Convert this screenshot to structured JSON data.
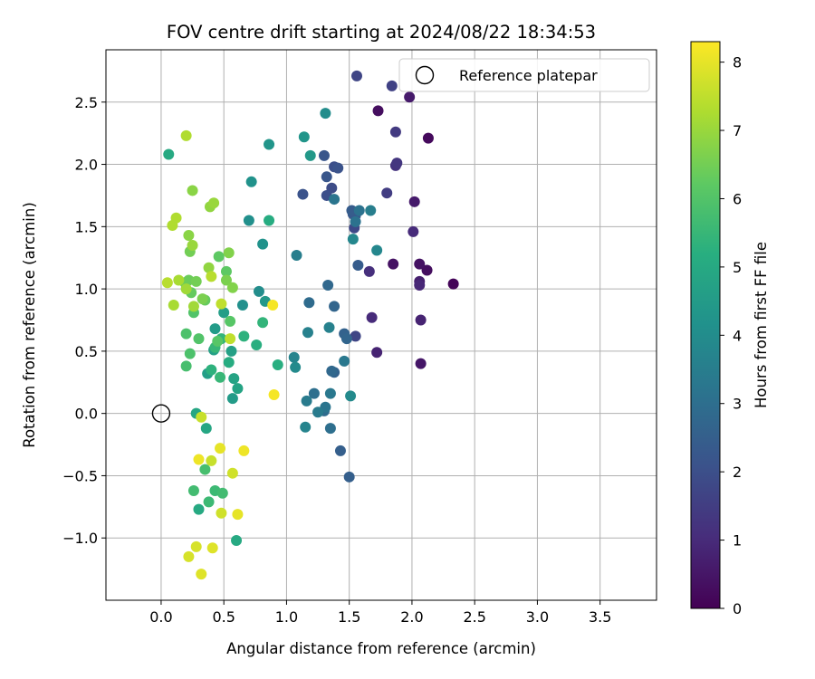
{
  "chart_data": {
    "type": "scatter",
    "title": "FOV centre drift starting at 2024/08/22 18:34:53",
    "xlabel": "Angular distance from reference (arcmin)",
    "ylabel": "Rotation from reference (arcmin)",
    "xlim": [
      -0.44,
      3.95
    ],
    "ylim": [
      -1.5,
      2.92
    ],
    "xticks": [
      "0.0",
      "0.5",
      "1.0",
      "1.5",
      "2.0",
      "2.5",
      "3.0",
      "3.5"
    ],
    "yticks": [
      "−1.0",
      "−0.5",
      "0.0",
      "0.5",
      "1.0",
      "1.5",
      "2.0",
      "2.5"
    ],
    "grid": true,
    "colormap": "viridis",
    "colorbar": {
      "label": "Hours from first FF file",
      "min": 0,
      "max": 8.3,
      "ticks": [
        "0",
        "1",
        "2",
        "3",
        "4",
        "5",
        "6",
        "7",
        "8"
      ]
    },
    "legend": {
      "position": "top-right",
      "entries": [
        "Reference platepar"
      ]
    },
    "reference_point": {
      "x": 0.0,
      "y": 0.0
    },
    "points": [
      [
        2.33,
        1.04,
        0.1
      ],
      [
        2.13,
        2.21,
        0.2
      ],
      [
        1.73,
        2.43,
        0.3
      ],
      [
        2.12,
        1.15,
        0.3
      ],
      [
        2.06,
        1.2,
        0.4
      ],
      [
        1.85,
        1.2,
        0.4
      ],
      [
        2.07,
        0.4,
        0.5
      ],
      [
        1.98,
        2.54,
        0.6
      ],
      [
        2.02,
        1.7,
        0.6
      ],
      [
        2.06,
        1.06,
        0.7
      ],
      [
        2.07,
        0.75,
        0.8
      ],
      [
        1.72,
        0.49,
        0.8
      ],
      [
        2.06,
        1.03,
        0.9
      ],
      [
        2.01,
        1.46,
        1.0
      ],
      [
        1.68,
        0.77,
        1.0
      ],
      [
        1.66,
        1.14,
        1.1
      ],
      [
        1.87,
        1.99,
        1.2
      ],
      [
        1.88,
        2.01,
        1.3
      ],
      [
        1.87,
        2.26,
        1.4
      ],
      [
        1.8,
        1.77,
        1.5
      ],
      [
        1.84,
        2.63,
        1.6
      ],
      [
        1.56,
        2.71,
        1.7
      ],
      [
        1.55,
        0.62,
        1.7
      ],
      [
        1.54,
        1.49,
        1.8
      ],
      [
        1.36,
        1.81,
        1.9
      ],
      [
        1.32,
        1.75,
        2.0
      ],
      [
        1.38,
        1.98,
        2.0
      ],
      [
        1.41,
        1.97,
        2.1
      ],
      [
        1.13,
        1.76,
        2.1
      ],
      [
        1.32,
        1.9,
        2.2
      ],
      [
        1.3,
        2.07,
        2.2
      ],
      [
        1.55,
        1.59,
        2.3
      ],
      [
        1.53,
        1.6,
        2.3
      ],
      [
        1.52,
        1.63,
        2.4
      ],
      [
        1.57,
        1.19,
        2.4
      ],
      [
        1.5,
        -0.51,
        2.5
      ],
      [
        1.43,
        -0.3,
        2.5
      ],
      [
        1.38,
        0.33,
        2.6
      ],
      [
        1.46,
        0.64,
        2.6
      ],
      [
        1.48,
        0.6,
        2.7
      ],
      [
        1.38,
        0.86,
        2.7
      ],
      [
        1.33,
        1.03,
        2.8
      ],
      [
        1.36,
        0.34,
        2.8
      ],
      [
        1.18,
        0.89,
        2.9
      ],
      [
        1.3,
        0.02,
        2.9
      ],
      [
        1.22,
        0.16,
        3.0
      ],
      [
        1.35,
        -0.12,
        3.0
      ],
      [
        1.55,
        1.54,
        3.1
      ],
      [
        1.58,
        1.63,
        3.1
      ],
      [
        1.31,
        0.05,
        3.2
      ],
      [
        1.38,
        1.72,
        3.2
      ],
      [
        1.46,
        0.42,
        3.3
      ],
      [
        1.35,
        0.16,
        3.3
      ],
      [
        1.16,
        0.1,
        3.4
      ],
      [
        1.25,
        0.01,
        3.4
      ],
      [
        1.67,
        1.63,
        3.5
      ],
      [
        1.08,
        1.27,
        3.5
      ],
      [
        1.34,
        0.69,
        3.6
      ],
      [
        1.17,
        0.65,
        3.6
      ],
      [
        1.06,
        0.45,
        3.7
      ],
      [
        1.15,
        -0.11,
        3.7
      ],
      [
        1.53,
        1.4,
        3.8
      ],
      [
        1.72,
        1.31,
        3.8
      ],
      [
        1.07,
        0.37,
        3.9
      ],
      [
        1.51,
        0.14,
        3.9
      ],
      [
        1.31,
        2.41,
        4.0
      ],
      [
        0.78,
        0.98,
        4.0
      ],
      [
        0.65,
        0.87,
        4.1
      ],
      [
        0.7,
        1.55,
        4.1
      ],
      [
        0.72,
        1.86,
        4.2
      ],
      [
        0.81,
        1.36,
        4.2
      ],
      [
        1.14,
        2.22,
        4.3
      ],
      [
        0.86,
        2.16,
        4.3
      ],
      [
        1.19,
        2.07,
        4.4
      ],
      [
        0.83,
        0.9,
        4.4
      ],
      [
        0.57,
        0.12,
        4.5
      ],
      [
        0.43,
        0.68,
        4.5
      ],
      [
        0.37,
        0.32,
        4.6
      ],
      [
        0.5,
        0.81,
        4.6
      ],
      [
        0.56,
        0.5,
        4.7
      ],
      [
        0.42,
        0.51,
        4.7
      ],
      [
        0.58,
        0.28,
        4.8
      ],
      [
        0.61,
        0.2,
        4.8
      ],
      [
        0.28,
        0.0,
        4.9
      ],
      [
        0.36,
        -0.12,
        4.9
      ],
      [
        0.6,
        -1.02,
        5.0
      ],
      [
        0.3,
        -0.77,
        5.0
      ],
      [
        0.06,
        2.08,
        5.0
      ],
      [
        0.86,
        1.55,
        5.1
      ],
      [
        0.54,
        0.41,
        5.1
      ],
      [
        0.76,
        0.55,
        5.2
      ],
      [
        0.93,
        0.39,
        5.2
      ],
      [
        0.66,
        0.62,
        5.3
      ],
      [
        0.4,
        0.35,
        5.3
      ],
      [
        0.48,
        0.6,
        5.4
      ],
      [
        0.81,
        0.73,
        5.4
      ],
      [
        0.47,
        0.29,
        5.5
      ],
      [
        0.43,
        0.53,
        5.5
      ],
      [
        0.38,
        -0.71,
        5.6
      ],
      [
        0.43,
        -0.62,
        5.6
      ],
      [
        0.49,
        -0.64,
        5.7
      ],
      [
        0.26,
        -0.62,
        5.7
      ],
      [
        0.35,
        -0.45,
        5.8
      ],
      [
        0.2,
        0.38,
        5.8
      ],
      [
        0.23,
        0.48,
        5.9
      ],
      [
        0.2,
        0.64,
        5.9
      ],
      [
        0.3,
        0.6,
        6.0
      ],
      [
        0.26,
        0.81,
        6.0
      ],
      [
        0.55,
        0.74,
        6.1
      ],
      [
        0.45,
        0.58,
        6.1
      ],
      [
        0.46,
        1.26,
        6.2
      ],
      [
        0.52,
        1.14,
        6.2
      ],
      [
        0.35,
        0.91,
        6.3
      ],
      [
        0.24,
        0.97,
        6.3
      ],
      [
        0.19,
        1.05,
        6.4
      ],
      [
        0.22,
        1.07,
        6.4
      ],
      [
        0.23,
        1.3,
        6.5
      ],
      [
        0.28,
        1.06,
        6.5
      ],
      [
        0.33,
        0.92,
        6.6
      ],
      [
        0.52,
        1.07,
        6.6
      ],
      [
        0.57,
        1.01,
        6.7
      ],
      [
        0.54,
        1.29,
        6.7
      ],
      [
        0.25,
        1.79,
        6.8
      ],
      [
        0.22,
        1.43,
        6.8
      ],
      [
        0.38,
        1.17,
        6.9
      ],
      [
        0.39,
        1.66,
        6.9
      ],
      [
        0.42,
        1.69,
        7.0
      ],
      [
        0.25,
        1.35,
        7.0
      ],
      [
        0.2,
        1.0,
        7.1
      ],
      [
        0.26,
        0.86,
        7.1
      ],
      [
        0.1,
        0.87,
        7.2
      ],
      [
        0.14,
        1.07,
        7.2
      ],
      [
        0.09,
        1.51,
        7.3
      ],
      [
        0.12,
        1.57,
        7.3
      ],
      [
        0.2,
        2.23,
        7.3
      ],
      [
        0.05,
        1.05,
        7.4
      ],
      [
        0.4,
        1.1,
        7.4
      ],
      [
        0.48,
        0.88,
        7.5
      ],
      [
        0.55,
        0.6,
        7.5
      ],
      [
        0.32,
        -0.03,
        7.6
      ],
      [
        0.4,
        -0.38,
        7.6
      ],
      [
        0.57,
        -0.48,
        7.7
      ],
      [
        0.48,
        -0.8,
        7.7
      ],
      [
        0.28,
        -1.07,
        7.8
      ],
      [
        0.22,
        -1.15,
        7.8
      ],
      [
        0.32,
        -1.29,
        7.9
      ],
      [
        0.41,
        -1.08,
        7.9
      ],
      [
        0.61,
        -0.81,
        8.0
      ],
      [
        0.47,
        -0.28,
        8.0
      ],
      [
        0.3,
        -0.37,
        8.1
      ],
      [
        0.66,
        -0.3,
        8.1
      ],
      [
        0.89,
        0.87,
        8.2
      ],
      [
        0.9,
        0.15,
        8.2
      ]
    ]
  }
}
